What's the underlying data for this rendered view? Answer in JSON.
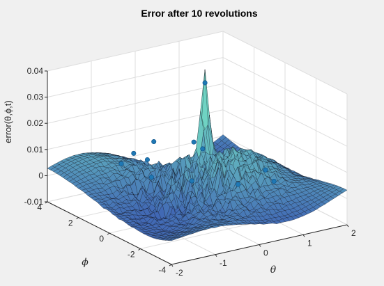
{
  "chart_data": {
    "type": "surface",
    "title": "Error after 10 revolutions",
    "xlabel": "θ",
    "ylabel": "ϕ",
    "zlabel": "error(θ,ϕ,t)",
    "xlim": [
      -2,
      2
    ],
    "ylim": [
      -4,
      4
    ],
    "zlim": [
      -0.01,
      0.04
    ],
    "x_ticks": [
      -2,
      -1,
      0,
      1,
      2
    ],
    "y_ticks": [
      -4,
      -2,
      0,
      2,
      4
    ],
    "z_ticks": [
      -0.01,
      0,
      0.01,
      0.02,
      0.03,
      0.04
    ],
    "x_tick_labels": [
      "-2",
      "-1",
      "0",
      "1",
      "2"
    ],
    "y_tick_labels": [
      "-4",
      "-2",
      "0",
      "2",
      "4"
    ],
    "z_tick_labels": [
      "-0.01",
      "0",
      "0.01",
      "0.02",
      "0.03",
      "0.04"
    ],
    "grid": true,
    "peak": {
      "theta": 0.6,
      "phi": 1.2,
      "error": 0.034
    },
    "markers": [
      {
        "theta": 0.6,
        "phi": 1.2,
        "error": 0.034
      },
      {
        "theta": -1.2,
        "phi": 1.5,
        "error": 0.009
      },
      {
        "theta": -0.6,
        "phi": 2.4,
        "error": 0.008
      },
      {
        "theta": 0.0,
        "phi": 2.8,
        "error": 0.009
      },
      {
        "theta": -0.9,
        "phi": 0.4,
        "error": 0.006
      },
      {
        "theta": -0.3,
        "phi": -0.5,
        "error": 0.005
      },
      {
        "theta": 0.4,
        "phi": -1.5,
        "error": 0.004
      },
      {
        "theta": 0.9,
        "phi": -2.4,
        "error": 0.006
      },
      {
        "theta": 1.2,
        "phi": -1.0,
        "error": 0.005
      },
      {
        "theta": 0.3,
        "phi": 0.5,
        "error": 0.012
      },
      {
        "theta": -0.5,
        "phi": 1.8,
        "error": 0.007
      },
      {
        "theta": 0.7,
        "phi": 2.2,
        "error": 0.008
      }
    ],
    "colors": {
      "surface_low": "#3d5fb3",
      "surface_high": "#6fd3c3",
      "mesh_edge": "#0a0a14",
      "marker": "#1f78b4",
      "axes_background": "#ffffff",
      "figure_background": "#f0f0f0",
      "axes_line": "#262626"
    }
  }
}
